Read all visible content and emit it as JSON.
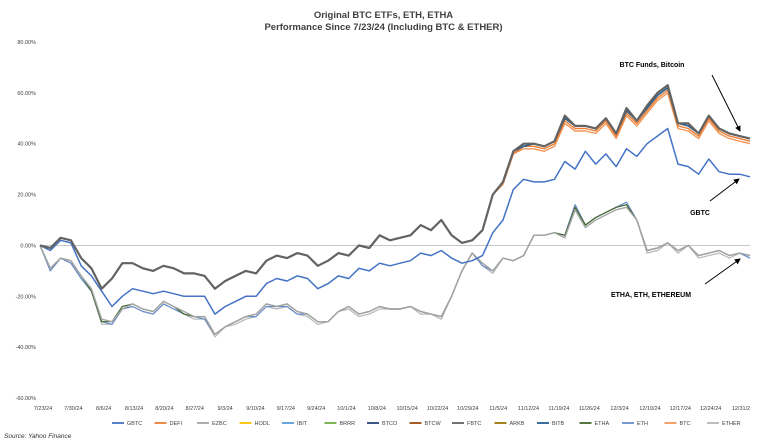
{
  "chart_data": {
    "type": "line",
    "title": "Original BTC ETFs, ETH, ETHA",
    "subtitle": "Performance Since 7/23/24 (Including BTC & ETHER)",
    "source": "Source: Yahoo Finance",
    "xlabel": "",
    "ylabel": "",
    "ylim": [
      -60,
      80
    ],
    "y_ticks": [
      "80.00%",
      "60.00%",
      "40.00%",
      "20.00%",
      "0.00%",
      "-20.00%",
      "-40.00%",
      "-60.00%"
    ],
    "y_tick_values": [
      80,
      60,
      40,
      20,
      0,
      -20,
      -40,
      -60
    ],
    "x_ticks": [
      "7/23/24",
      "7/30/24",
      "8/6/24",
      "8/13/24",
      "8/20/24",
      "8/27/24",
      "9/3/24",
      "9/10/24",
      "9/17/24",
      "9/24/24",
      "10/1/24",
      "10/8/24",
      "10/15/24",
      "10/22/24",
      "10/29/24",
      "11/5/24",
      "11/12/24",
      "11/19/24",
      "11/26/24",
      "12/3/24",
      "12/10/24",
      "12/17/24",
      "12/24/24",
      "12/31/2"
    ],
    "grid": false,
    "legend_position": "bottom",
    "annotations": [
      {
        "text": "BTC Funds, Bitcoin"
      },
      {
        "text": "GBTC"
      },
      {
        "text": "ETHA, ETH, ETHEREUM"
      }
    ],
    "legend": [
      {
        "name": "GBTC",
        "color": "#4472C4"
      },
      {
        "name": "DEFI",
        "color": "#ED7D31"
      },
      {
        "name": "EZBC",
        "color": "#A5A5A5"
      },
      {
        "name": "HODL",
        "color": "#FFC000"
      },
      {
        "name": "IBIT",
        "color": "#5B9BD5"
      },
      {
        "name": "BRRR",
        "color": "#70AD47"
      },
      {
        "name": "BTCO",
        "color": "#264478"
      },
      {
        "name": "BTCW",
        "color": "#9E480E"
      },
      {
        "name": "FBTC",
        "color": "#636363"
      },
      {
        "name": "ARKB",
        "color": "#997300"
      },
      {
        "name": "BITB",
        "color": "#255E91"
      },
      {
        "name": "ETHA",
        "color": "#43682B"
      },
      {
        "name": "ETH",
        "color": "#698ED0"
      },
      {
        "name": "BTC",
        "color": "#F1975A"
      },
      {
        "name": "ETHER",
        "color": "#B7B7B7"
      }
    ],
    "series": [
      {
        "name": "GBTC",
        "color": "#4472C4",
        "values": [
          0,
          -2,
          2,
          1,
          -8,
          -12,
          -18,
          -24,
          -20,
          -17,
          -18,
          -19,
          -18,
          -19,
          -20,
          -20,
          -20,
          -27,
          -24,
          -22,
          -20,
          -20,
          -15,
          -13,
          -14,
          -12,
          -13,
          -17,
          -15,
          -12,
          -13,
          -9,
          -10,
          -7,
          -8,
          -7,
          -6,
          -3,
          -4,
          -2,
          -5,
          -7,
          -6,
          -4,
          5,
          10,
          22,
          26,
          25,
          25,
          26,
          33,
          30,
          37,
          32,
          36,
          31,
          38,
          35,
          40,
          43,
          46,
          32,
          31,
          28,
          34,
          29,
          28,
          28,
          27
        ]
      },
      {
        "name": "DEFI",
        "color": "#ED7D31",
        "values": [
          0,
          -1,
          3,
          2,
          -5,
          -9,
          -17,
          -13,
          -7,
          -7,
          -9,
          -10,
          -8,
          -9,
          -11,
          -11,
          -12,
          -17,
          -14,
          -12,
          -10,
          -11,
          -6,
          -4,
          -5,
          -3,
          -4,
          -8,
          -6,
          -3,
          -4,
          0,
          -1,
          4,
          2,
          3,
          4,
          8,
          6,
          10,
          4,
          1,
          2,
          6,
          20,
          25,
          36,
          39,
          39,
          38,
          40,
          49,
          46,
          46,
          45,
          49,
          43,
          52,
          48,
          53,
          58,
          61,
          47,
          46,
          43,
          50,
          45,
          43,
          42,
          41
        ]
      },
      {
        "name": "EZBC",
        "color": "#A5A5A5",
        "values": [
          0,
          -9,
          -5,
          -6,
          -12,
          -17,
          -29,
          -30,
          -25,
          -23,
          -25,
          -26,
          -22,
          -24,
          -26,
          -28,
          -28,
          -35,
          -32,
          -30,
          -28,
          -27,
          -23,
          -24,
          -23,
          -26,
          -27,
          -30,
          -30,
          -26,
          -24,
          -27,
          -26,
          -24,
          -25,
          -25,
          -24,
          -26,
          -27,
          -28,
          -20,
          -10,
          -3,
          -7,
          -10,
          -5,
          -6,
          -4,
          4,
          4,
          5,
          3,
          14,
          7,
          10,
          12,
          14,
          15,
          10,
          -2,
          -1,
          1,
          -2,
          0,
          -4,
          -3,
          -2,
          -4,
          -3,
          -4
        ]
      },
      {
        "name": "ETHA",
        "color": "#43682B",
        "values": [
          0,
          -9,
          -5,
          -6,
          -12,
          -18,
          -30,
          -30,
          -24,
          -23,
          -25,
          -26,
          -22,
          -24,
          -27,
          -28,
          -28,
          -35,
          -32,
          -30,
          -28,
          -27,
          -23,
          -24,
          -23,
          -26,
          -27,
          -30,
          -30,
          -26,
          -24,
          -27,
          -26,
          -24,
          -25,
          -25,
          -24,
          -26,
          -27,
          -28,
          -20,
          -10,
          -3,
          -7,
          -10,
          -5,
          -6,
          -4,
          4,
          4,
          5,
          4,
          15,
          8,
          11,
          13,
          15,
          16,
          10,
          -2,
          -1,
          1,
          -2,
          0,
          -4,
          -3,
          -2,
          -4,
          -3,
          -4
        ]
      },
      {
        "name": "ETH",
        "color": "#698ED0",
        "values": [
          0,
          -10,
          -5,
          -7,
          -13,
          -18,
          -30,
          -31,
          -25,
          -24,
          -26,
          -27,
          -23,
          -25,
          -27,
          -28,
          -29,
          -35,
          -32,
          -30,
          -28,
          -28,
          -24,
          -24,
          -24,
          -27,
          -27,
          -30,
          -30,
          -26,
          -24,
          -27,
          -26,
          -24,
          -25,
          -25,
          -24,
          -26,
          -27,
          -28,
          -20,
          -10,
          -3,
          -8,
          -10,
          -5,
          -6,
          -4,
          4,
          4,
          5,
          4,
          16,
          8,
          11,
          13,
          15,
          17,
          10,
          -2,
          -1,
          1,
          -2,
          0,
          -4,
          -3,
          -2,
          -4,
          -3,
          -5
        ]
      },
      {
        "name": "BITB",
        "color": "#255E91",
        "values": [
          0,
          -1,
          3,
          2,
          -5,
          -9,
          -17,
          -13,
          -7,
          -7,
          -9,
          -10,
          -8,
          -9,
          -11,
          -11,
          -12,
          -17,
          -14,
          -12,
          -10,
          -11,
          -6,
          -4,
          -5,
          -3,
          -4,
          -8,
          -6,
          -3,
          -4,
          0,
          -1,
          4,
          2,
          3,
          4,
          8,
          6,
          10,
          4,
          1,
          2,
          6,
          20,
          25,
          37,
          39,
          40,
          39,
          41,
          50,
          47,
          47,
          46,
          50,
          44,
          53,
          49,
          54,
          59,
          62,
          48,
          47,
          44,
          51,
          46,
          44,
          43,
          42
        ]
      },
      {
        "name": "FBTC",
        "color": "#636363",
        "values": [
          0,
          -1,
          3,
          2,
          -5,
          -9,
          -17,
          -13,
          -7,
          -7,
          -9,
          -10,
          -8,
          -9,
          -11,
          -11,
          -12,
          -17,
          -14,
          -12,
          -10,
          -11,
          -6,
          -4,
          -5,
          -3,
          -4,
          -8,
          -6,
          -3,
          -4,
          0,
          -1,
          4,
          2,
          3,
          4,
          8,
          6,
          10,
          4,
          1,
          2,
          6,
          20,
          25,
          37,
          40,
          40,
          39,
          41,
          51,
          47,
          47,
          46,
          50,
          44,
          54,
          49,
          55,
          60,
          63,
          48,
          48,
          44,
          51,
          46,
          44,
          43,
          42
        ]
      },
      {
        "name": "BTC",
        "color": "#F1975A",
        "values": [
          0,
          -1,
          3,
          2,
          -5,
          -9,
          -17,
          -13,
          -7,
          -7,
          -9,
          -10,
          -8,
          -9,
          -11,
          -11,
          -12,
          -17,
          -14,
          -12,
          -10,
          -11,
          -6,
          -4,
          -5,
          -3,
          -4,
          -8,
          -6,
          -3,
          -4,
          0,
          -1,
          4,
          2,
          3,
          4,
          8,
          6,
          10,
          4,
          1,
          2,
          6,
          20,
          24,
          36,
          38,
          38,
          37,
          39,
          48,
          45,
          45,
          44,
          48,
          42,
          51,
          47,
          52,
          57,
          60,
          46,
          45,
          42,
          49,
          44,
          42,
          41,
          40
        ]
      },
      {
        "name": "ETHER",
        "color": "#B7B7B7",
        "values": [
          0,
          -10,
          -5,
          -7,
          -13,
          -18,
          -31,
          -31,
          -25,
          -24,
          -26,
          -27,
          -23,
          -25,
          -27,
          -29,
          -29,
          -36,
          -32,
          -31,
          -29,
          -28,
          -24,
          -25,
          -24,
          -27,
          -28,
          -31,
          -30,
          -26,
          -25,
          -28,
          -27,
          -25,
          -25,
          -25,
          -24,
          -27,
          -27,
          -29,
          -20,
          -10,
          -3,
          -8,
          -11,
          -5,
          -6,
          -4,
          4,
          4,
          5,
          4,
          16,
          8,
          11,
          13,
          15,
          16,
          10,
          -3,
          -2,
          1,
          -3,
          0,
          -5,
          -4,
          -3,
          -5,
          -3,
          -5
        ]
      }
    ]
  }
}
